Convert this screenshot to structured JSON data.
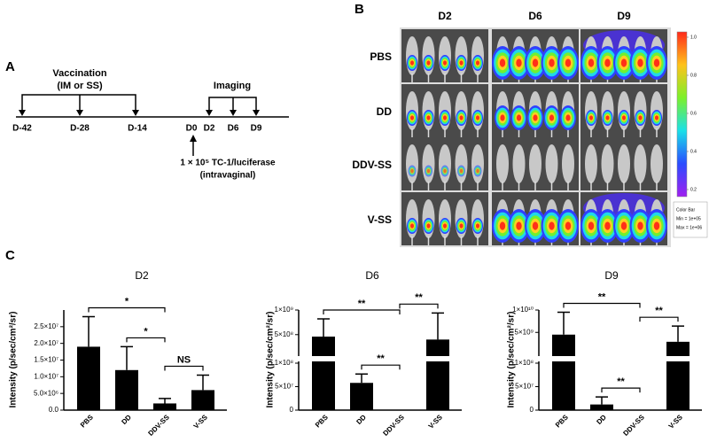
{
  "panel_a": {
    "label": "A",
    "vaccination": "Vaccination",
    "route": "(IM or SS)",
    "imaging": "Imaging",
    "timepoints": [
      "D-42",
      "D-28",
      "D-14",
      "D0",
      "D2",
      "D6",
      "D9"
    ],
    "tumor": "1 × 10⁵ TC-1/luciferase",
    "tumor_route": "(intravaginal)"
  },
  "panel_b": {
    "label": "B",
    "columns": [
      "D2",
      "D6",
      "D9"
    ],
    "rows": [
      "PBS",
      "DD",
      "DDV-SS",
      "V-SS"
    ],
    "colorbar": {
      "lim": [
        0.2,
        1.0
      ],
      "ticks": [
        {
          "value": 1.0,
          "label": "1.0"
        },
        {
          "value": 0.8,
          "label": "0.8"
        },
        {
          "value": 0.6,
          "label": "0.6"
        },
        {
          "value": 0.4,
          "label": "0.4"
        },
        {
          "value": 0.2,
          "label": "0.2"
        }
      ],
      "legend": [
        "Color Bar",
        "Min = 1e+05",
        "Max = 1e+06"
      ]
    }
  },
  "panel_c": {
    "label": "C"
  },
  "chart_data": [
    {
      "type": "bar",
      "title": "D2",
      "y_label": "Intensity (p/sec/cm²/sr)",
      "categories": [
        "PBS",
        "DD",
        "DDV-SS",
        "V-SS"
      ],
      "values": [
        19000000,
        12000000,
        2000000,
        6000000
      ],
      "errors": [
        9000000,
        7000000,
        1500000,
        4500000
      ],
      "color": "#000000",
      "ylim": [
        0,
        30000000
      ],
      "yticks": [
        {
          "value": 0,
          "label": "0.0"
        },
        {
          "value": 5000000,
          "label": "5.0×10⁶"
        },
        {
          "value": 10000000,
          "label": "1.0×10⁷"
        },
        {
          "value": 15000000,
          "label": "1.5×10⁷"
        },
        {
          "value": 20000000,
          "label": "2.0×10⁷"
        },
        {
          "value": 25000000,
          "label": "2.5×10⁷"
        }
      ],
      "annotations": [
        {
          "text": "*",
          "between": [
            1,
            2
          ]
        },
        {
          "text": "NS",
          "between": [
            2,
            3
          ]
        },
        {
          "text": "*",
          "between": [
            0,
            2
          ]
        }
      ]
    },
    {
      "type": "bar",
      "title": "D6",
      "y_label": "Intensity (p/sec/cm²/sr)",
      "categories": [
        "PBS",
        "DD",
        "DDV-SS",
        "V-SS"
      ],
      "values": [
        460000000,
        58000000,
        0,
        400000000
      ],
      "errors": [
        360000000,
        19000000,
        0,
        540000000
      ],
      "color": "#000000",
      "ylim": [
        0,
        1000000000
      ],
      "ybreak": 100000000,
      "yticks": [
        0,
        {
          "value": 50000000,
          "label": "5×10⁷"
        },
        {
          "value": 100000000,
          "label": "1×10⁸"
        },
        {
          "value": 500000000,
          "label": "5×10⁸"
        },
        {
          "value": 1000000000,
          "label": "1×10⁹"
        }
      ],
      "annotations": [
        {
          "text": "**",
          "between": [
            1,
            2
          ]
        },
        {
          "text": "**",
          "between": [
            2,
            3
          ]
        },
        {
          "text": "**",
          "between": [
            0,
            2
          ]
        }
      ]
    },
    {
      "type": "bar",
      "title": "D9",
      "y_label": "Intensity (p/sec/cm²/sr)",
      "categories": [
        "PBS",
        "DD",
        "DDV-SS",
        "V-SS"
      ],
      "values": [
        4500000000,
        12000000,
        0,
        2900000000
      ],
      "errors": [
        5000000000,
        16000000,
        0,
        3500000000
      ],
      "color": "#000000",
      "ylim": [
        0,
        10000000000
      ],
      "ybreak": 100000000,
      "yticks": [
        0,
        {
          "value": 50000000,
          "label": "5×10⁷"
        },
        {
          "value": 100000000,
          "label": "1×10⁸"
        },
        {
          "value": 5000000000,
          "label": "5×10⁹"
        },
        {
          "value": 10000000000,
          "label": "1×10¹⁰"
        }
      ],
      "annotations": [
        {
          "text": "**",
          "between": [
            1,
            2
          ]
        },
        {
          "text": "**",
          "between": [
            2,
            3
          ]
        },
        {
          "text": "**",
          "between": [
            0,
            2
          ]
        }
      ]
    }
  ]
}
